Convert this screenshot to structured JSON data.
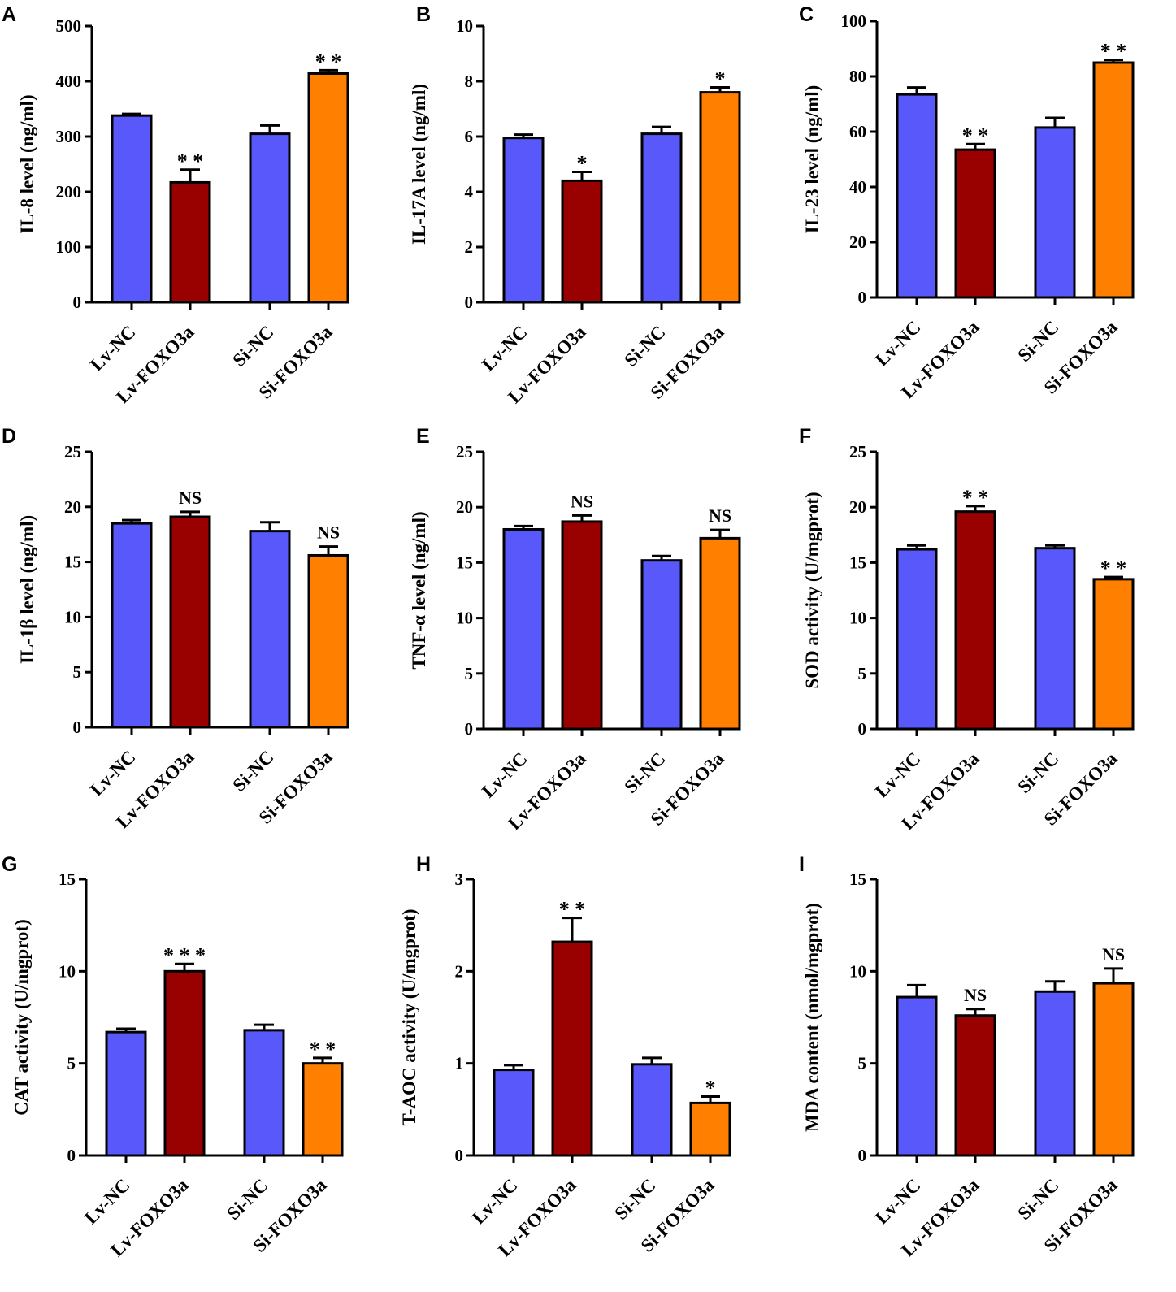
{
  "colors": {
    "Lv-NC": "#5858fb",
    "Lv-FOXO3a": "#990000",
    "Si-NC": "#5858fb",
    "Si-FOXO3a": "#ff8000",
    "stroke": "#000000"
  },
  "chart_data": [
    {
      "letter": "A",
      "type": "bar",
      "ylabel": "IL-8 level (ng/ml)",
      "ylim": [
        0,
        500
      ],
      "ticks": [
        "0",
        "100",
        "200",
        "300",
        "400",
        "500"
      ],
      "categories": [
        "Lv-NC",
        "Lv-FOXO3a",
        "Si-NC",
        "Si-FOXO3a"
      ],
      "values": [
        338,
        217,
        305,
        414
      ],
      "errors": [
        3,
        23,
        15,
        6
      ],
      "annotations": [
        "",
        "* *",
        "",
        "* *"
      ]
    },
    {
      "letter": "B",
      "type": "bar",
      "ylabel": "IL-17A level (ng/ml)",
      "ylim": [
        0,
        10
      ],
      "ticks": [
        "0",
        "2",
        "4",
        "6",
        "8",
        "10"
      ],
      "categories": [
        "Lv-NC",
        "Lv-FOXO3a",
        "Si-NC",
        "Si-FOXO3a"
      ],
      "values": [
        5.95,
        4.4,
        6.1,
        7.6
      ],
      "errors": [
        0.12,
        0.32,
        0.25,
        0.18
      ],
      "annotations": [
        "",
        "*",
        "",
        "*"
      ]
    },
    {
      "letter": "C",
      "type": "bar",
      "ylabel": "IL-23 level (ng/ml)",
      "ylim": [
        0,
        100
      ],
      "ticks": [
        "0",
        "20",
        "40",
        "60",
        "80",
        "100"
      ],
      "categories": [
        "Lv-NC",
        "Lv-FOXO3a",
        "Si-NC",
        "Si-FOXO3a"
      ],
      "values": [
        73.5,
        53.5,
        61.5,
        85
      ],
      "errors": [
        2.5,
        2,
        3.5,
        1
      ],
      "annotations": [
        "",
        "* *",
        "",
        "* *"
      ]
    },
    {
      "letter": "D",
      "type": "bar",
      "ylabel": "IL-1β level (ng/ml)",
      "ylim": [
        0,
        25
      ],
      "ticks": [
        "0",
        "5",
        "10",
        "15",
        "20",
        "25"
      ],
      "categories": [
        "Lv-NC",
        "Lv-FOXO3a",
        "Si-NC",
        "Si-FOXO3a"
      ],
      "values": [
        18.5,
        19.1,
        17.8,
        15.6
      ],
      "errors": [
        0.3,
        0.45,
        0.8,
        0.8
      ],
      "annotations": [
        "",
        "NS",
        "",
        "NS"
      ]
    },
    {
      "letter": "E",
      "type": "bar",
      "ylabel": "TNF-α level (ng/ml)",
      "ylim": [
        0,
        25
      ],
      "ticks": [
        "0",
        "5",
        "10",
        "15",
        "20",
        "25"
      ],
      "categories": [
        "Lv-NC",
        "Lv-FOXO3a",
        "Si-NC",
        "Si-FOXO3a"
      ],
      "values": [
        18.0,
        18.7,
        15.2,
        17.2
      ],
      "errors": [
        0.3,
        0.55,
        0.4,
        0.75
      ],
      "annotations": [
        "",
        "NS",
        "",
        "NS"
      ]
    },
    {
      "letter": "F",
      "type": "bar",
      "ylabel": "SOD activity (U/mgprot)",
      "ylim": [
        0,
        25
      ],
      "ticks": [
        "0",
        "5",
        "10",
        "15",
        "20",
        "25"
      ],
      "categories": [
        "Lv-NC",
        "Lv-FOXO3a",
        "Si-NC",
        "Si-FOXO3a"
      ],
      "values": [
        16.2,
        19.6,
        16.3,
        13.5
      ],
      "errors": [
        0.35,
        0.5,
        0.25,
        0.2
      ],
      "annotations": [
        "",
        "* *",
        "",
        "* *"
      ]
    },
    {
      "letter": "G",
      "type": "bar",
      "ylabel": "CAT activity (U/mgprot)",
      "ylim": [
        0,
        15
      ],
      "ticks": [
        "0",
        "5",
        "10",
        "15"
      ],
      "categories": [
        "Lv-NC",
        "Lv-FOXO3a",
        "Si-NC",
        "Si-FOXO3a"
      ],
      "values": [
        6.7,
        10.0,
        6.8,
        5.0
      ],
      "errors": [
        0.18,
        0.4,
        0.3,
        0.3
      ],
      "annotations": [
        "",
        "* * *",
        "",
        "* *"
      ]
    },
    {
      "letter": "H",
      "type": "bar",
      "ylabel": "T-AOC activity (U/mgprot)",
      "ylim": [
        0,
        3
      ],
      "ticks": [
        "0",
        "1",
        "2",
        "3"
      ],
      "categories": [
        "Lv-NC",
        "Lv-FOXO3a",
        "Si-NC",
        "Si-FOXO3a"
      ],
      "values": [
        0.93,
        2.32,
        0.99,
        0.57
      ],
      "errors": [
        0.05,
        0.26,
        0.07,
        0.07
      ],
      "annotations": [
        "",
        "* *",
        "",
        "*"
      ]
    },
    {
      "letter": "I",
      "type": "bar",
      "ylabel": "MDA content (nmol/mgprot)",
      "ylim": [
        0,
        15
      ],
      "ticks": [
        "0",
        "5",
        "10",
        "15"
      ],
      "categories": [
        "Lv-NC",
        "Lv-FOXO3a",
        "Si-NC",
        "Si-FOXO3a"
      ],
      "values": [
        8.6,
        7.6,
        8.9,
        9.35
      ],
      "errors": [
        0.65,
        0.35,
        0.55,
        0.8
      ],
      "annotations": [
        "",
        "NS",
        "",
        "NS"
      ]
    }
  ]
}
